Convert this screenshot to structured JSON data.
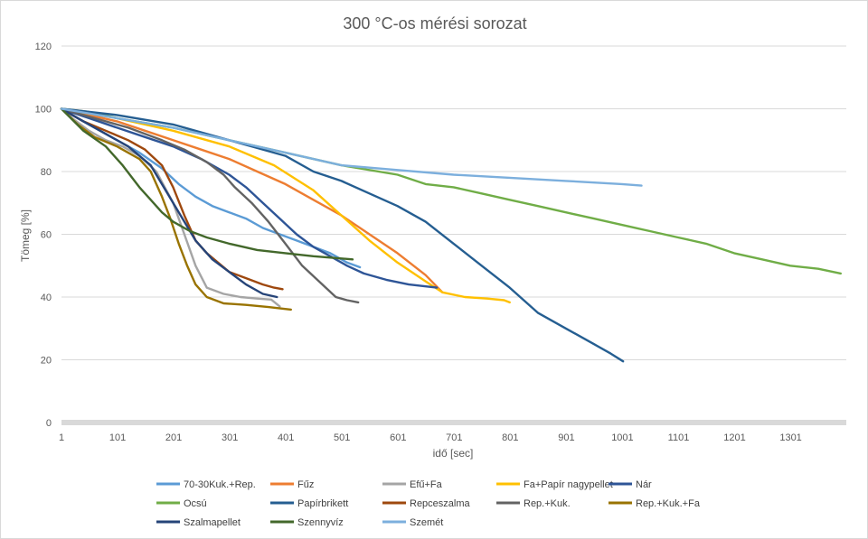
{
  "chart_data": {
    "type": "line",
    "title": "300 °C-os mérési sorozat",
    "xlabel": "idő [sec]",
    "ylabel": "Tömeg [%]",
    "xlim": [
      1,
      1400
    ],
    "ylim": [
      0,
      120
    ],
    "x_ticks": [
      1,
      101,
      201,
      301,
      401,
      501,
      601,
      701,
      801,
      901,
      1001,
      1101,
      1201,
      1301
    ],
    "y_ticks": [
      0,
      20,
      40,
      60,
      80,
      100,
      120
    ],
    "grid": true,
    "legend_position": "bottom",
    "series": [
      {
        "name": "70-30Kuk.+Rep.",
        "color": "#5B9BD5",
        "x": [
          1,
          30,
          60,
          100,
          140,
          180,
          210,
          240,
          270,
          300,
          330,
          360,
          390,
          420,
          450,
          480,
          510,
          533
        ],
        "y": [
          100,
          97,
          94,
          90,
          86,
          81,
          76,
          72,
          69,
          67,
          65,
          62,
          60,
          58,
          56,
          54,
          51,
          49.5
        ]
      },
      {
        "name": "Fűz",
        "color": "#ED7D31",
        "x": [
          1,
          50,
          100,
          150,
          200,
          250,
          300,
          350,
          400,
          450,
          500,
          550,
          600,
          650,
          680
        ],
        "y": [
          100,
          98,
          96,
          93,
          90,
          87,
          84,
          80,
          76,
          71,
          66,
          60,
          54,
          47,
          41.5
        ]
      },
      {
        "name": "Efű+Fa",
        "color": "#A5A5A5",
        "x": [
          1,
          20,
          50,
          80,
          110,
          140,
          170,
          200,
          220,
          240,
          260,
          290,
          320,
          350,
          375,
          390
        ],
        "y": [
          100,
          97,
          93,
          90,
          88,
          85,
          80,
          70,
          60,
          50,
          43,
          41,
          40,
          39.5,
          39.2,
          37
        ]
      },
      {
        "name": "Fa+Papír nagypellet",
        "color": "#FFC000",
        "x": [
          1,
          100,
          200,
          300,
          380,
          450,
          500,
          550,
          600,
          650,
          680,
          720,
          760,
          790,
          800
        ],
        "y": [
          100,
          97,
          93,
          88,
          82,
          74,
          66,
          58,
          51,
          45,
          41.5,
          40,
          39.5,
          39,
          38.3
        ]
      },
      {
        "name": "Nár",
        "color": "#2E5597",
        "x": [
          1,
          50,
          100,
          150,
          200,
          250,
          300,
          330,
          360,
          390,
          420,
          450,
          480,
          510,
          540,
          580,
          620,
          670
        ],
        "y": [
          100,
          97,
          94,
          91,
          88,
          84,
          79,
          75,
          70,
          65,
          60,
          56,
          53,
          50,
          47.5,
          45.5,
          44,
          43
        ]
      },
      {
        "name": "Ocsú",
        "color": "#70AD47",
        "x": [
          1,
          50,
          100,
          200,
          300,
          400,
          500,
          600,
          650,
          700,
          750,
          800,
          850,
          900,
          950,
          1000,
          1050,
          1100,
          1150,
          1200,
          1250,
          1300,
          1350,
          1390
        ],
        "y": [
          100,
          99,
          97,
          94,
          90,
          86,
          82,
          79,
          76,
          75,
          73,
          71,
          69,
          67,
          65,
          63,
          61,
          59,
          57,
          54,
          52,
          50,
          49,
          47.5
        ]
      },
      {
        "name": "Papírbrikett",
        "color": "#255E91",
        "x": [
          1,
          100,
          200,
          300,
          400,
          450,
          500,
          550,
          600,
          650,
          700,
          750,
          800,
          850,
          900,
          950,
          980,
          1002
        ],
        "y": [
          100,
          98,
          95,
          90,
          85,
          80,
          77,
          73,
          69,
          64,
          57,
          50,
          43,
          35,
          30,
          25,
          22,
          19.5
        ]
      },
      {
        "name": "Repceszalma",
        "color": "#9E480E",
        "x": [
          1,
          40,
          80,
          120,
          150,
          180,
          200,
          220,
          240,
          260,
          280,
          300,
          330,
          360,
          380,
          395
        ],
        "y": [
          100,
          96,
          93,
          90,
          87,
          82,
          75,
          66,
          58,
          54,
          51,
          48,
          46,
          44,
          43,
          42.5
        ]
      },
      {
        "name": "Rep.+Kuk.",
        "color": "#636363",
        "x": [
          1,
          60,
          120,
          180,
          220,
          260,
          290,
          310,
          340,
          370,
          400,
          430,
          460,
          490,
          510,
          530
        ],
        "y": [
          100,
          97,
          94,
          90,
          87,
          83,
          79,
          75,
          70,
          64,
          57,
          50,
          45,
          40,
          39,
          38.3
        ]
      },
      {
        "name": "Rep.+Kuk.+Fa",
        "color": "#997300",
        "x": [
          1,
          30,
          60,
          100,
          140,
          160,
          180,
          195,
          210,
          225,
          240,
          260,
          290,
          330,
          370,
          410
        ],
        "y": [
          100,
          95,
          91,
          88,
          84,
          80,
          72,
          65,
          57,
          50,
          44,
          40,
          38,
          37.5,
          36.8,
          36
        ]
      },
      {
        "name": "Szalmapellet",
        "color": "#264478",
        "x": [
          1,
          40,
          80,
          120,
          160,
          200,
          240,
          270,
          300,
          330,
          360,
          385
        ],
        "y": [
          100,
          96,
          92,
          88,
          82,
          70,
          58,
          52,
          48,
          44,
          41,
          40
        ]
      },
      {
        "name": "Szennyvíz",
        "color": "#43682B",
        "x": [
          1,
          40,
          80,
          110,
          140,
          160,
          180,
          200,
          230,
          260,
          300,
          350,
          400,
          450,
          500,
          520
        ],
        "y": [
          100,
          93,
          88,
          82,
          75,
          71,
          67,
          64,
          61,
          59,
          57,
          55,
          54,
          53,
          52.3,
          52
        ]
      },
      {
        "name": "Szemét",
        "color": "#7CAFDD",
        "x": [
          1,
          100,
          200,
          300,
          400,
          500,
          600,
          700,
          800,
          900,
          1000,
          1035
        ],
        "y": [
          100,
          97,
          94,
          90,
          86,
          82,
          80.5,
          79,
          78,
          77,
          76,
          75.5
        ]
      }
    ]
  }
}
